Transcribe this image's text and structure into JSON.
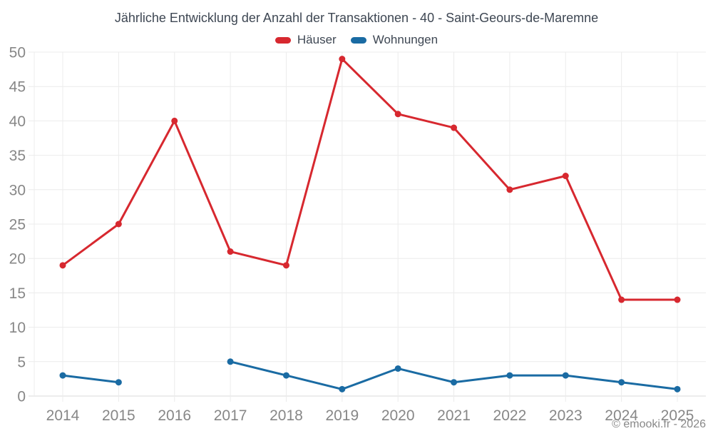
{
  "title": "Jährliche Entwicklung der Anzahl der Transaktionen - 40 - Saint-Geours-de-Maremne",
  "footer": "© emooki.fr - 2026",
  "legend": [
    {
      "label": "Häuser",
      "color": "#d7282f"
    },
    {
      "label": "Wohnungen",
      "color": "#1a6ba3"
    }
  ],
  "chart_data": {
    "type": "line",
    "title": "Jährliche Entwicklung der Anzahl der Transaktionen - 40 - Saint-Geours-de-Maremne",
    "categories": [
      "2014",
      "2015",
      "2016",
      "2017",
      "2018",
      "2019",
      "2020",
      "2021",
      "2022",
      "2023",
      "2024",
      "2025"
    ],
    "series": [
      {
        "name": "Häuser",
        "color": "#d7282f",
        "values": [
          19,
          25,
          40,
          21,
          19,
          49,
          41,
          39,
          30,
          32,
          14,
          14
        ]
      },
      {
        "name": "Wohnungen",
        "color": "#1a6ba3",
        "values": [
          3,
          2,
          null,
          5,
          3,
          1,
          4,
          2,
          3,
          3,
          2,
          1
        ]
      }
    ],
    "xlabel": "",
    "ylabel": "",
    "ylim": [
      0,
      50
    ],
    "yticks": [
      0,
      5,
      10,
      15,
      20,
      25,
      30,
      35,
      40,
      45,
      50
    ],
    "grid": true,
    "legend_position": "top"
  },
  "colors": {
    "background": "#ffffff",
    "gridline": "#ececec",
    "axis_line": "#d8d8d8",
    "tick_label": "#878787",
    "title_text": "#3e4753",
    "footer_text": "#888888"
  }
}
